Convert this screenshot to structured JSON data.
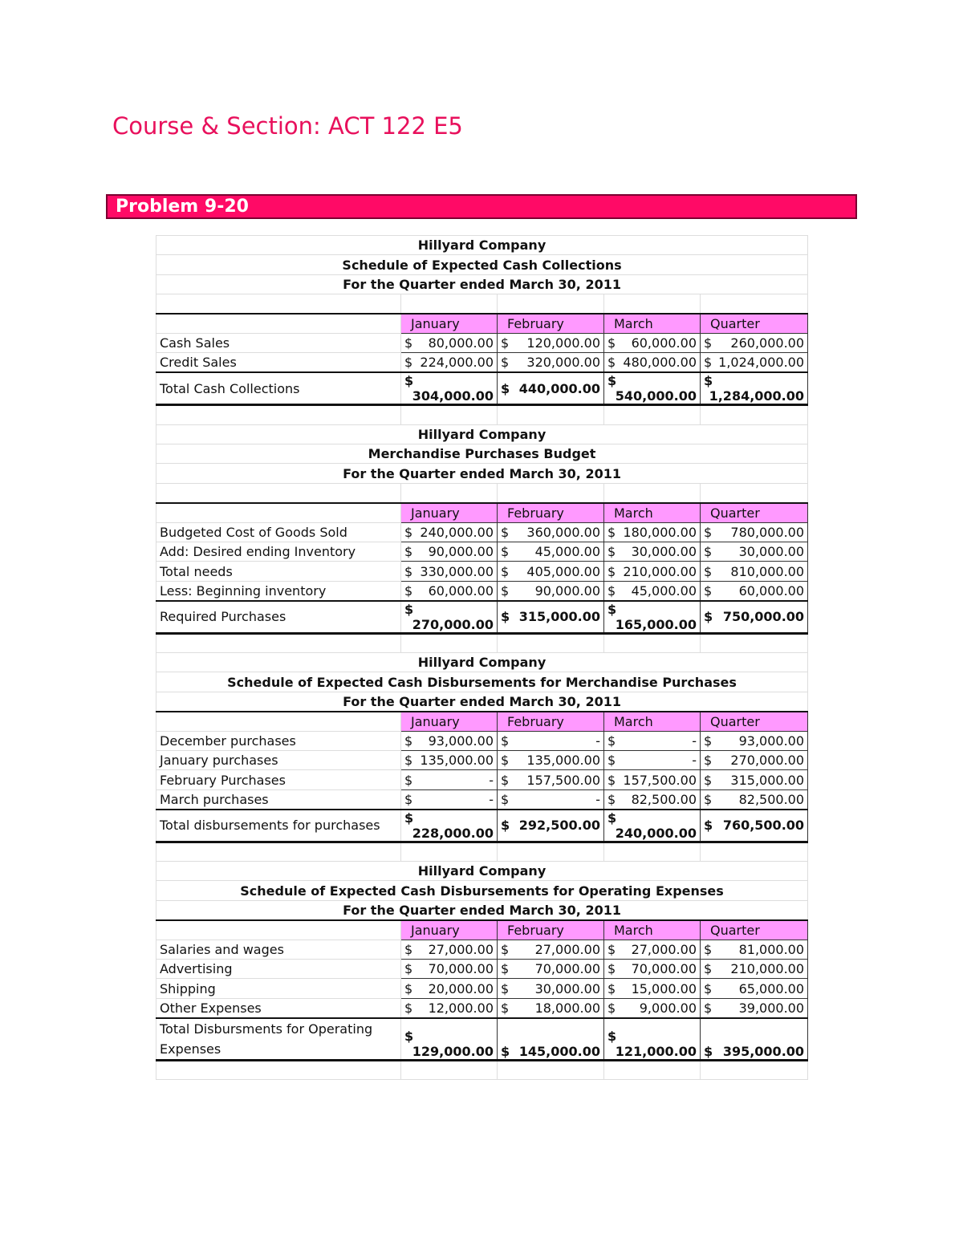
{
  "header": {
    "course": "Course & Section: ACT 122 E5",
    "problem": "Problem 9-20"
  },
  "tables": [
    {
      "company": "Hillyard Company",
      "title": "Schedule of Expected Cash Collections",
      "period": "For the Quarter ended March 30, 2011",
      "columns": [
        "January",
        "February",
        "March",
        "Quarter"
      ],
      "rows": [
        {
          "label": "Cash Sales",
          "cells": [
            [
              "$",
              "80,000.00"
            ],
            [
              "$",
              "120,000.00"
            ],
            [
              "$",
              "60,000.00"
            ],
            [
              "$",
              "260,000.00"
            ]
          ]
        },
        {
          "label": "Credit Sales",
          "cells": [
            [
              "$",
              "224,000.00"
            ],
            [
              "$",
              "320,000.00"
            ],
            [
              "$",
              "480,000.00"
            ],
            [
              "$",
              "1,024,000.00"
            ]
          ]
        },
        {
          "label": "Total Cash Collections",
          "cells": [
            [
              "$",
              "304,000.00"
            ],
            [
              "$",
              "440,000.00"
            ],
            [
              "$",
              "540,000.00"
            ],
            [
              "$",
              "1,284,000.00"
            ]
          ]
        }
      ]
    },
    {
      "company": "Hillyard Company",
      "title": "Merchandise Purchases Budget",
      "period": "For the Quarter ended March 30, 2011",
      "columns": [
        "January",
        "February",
        "March",
        "Quarter"
      ],
      "rows": [
        {
          "label": "Budgeted Cost of Goods Sold",
          "cells": [
            [
              "$",
              "240,000.00"
            ],
            [
              "$",
              "360,000.00"
            ],
            [
              "$",
              "180,000.00"
            ],
            [
              "$",
              "780,000.00"
            ]
          ]
        },
        {
          "label": "Add: Desired ending Inventory",
          "cells": [
            [
              "$",
              "90,000.00"
            ],
            [
              "$",
              "45,000.00"
            ],
            [
              "$",
              "30,000.00"
            ],
            [
              "$",
              "30,000.00"
            ]
          ]
        },
        {
          "label": "Total needs",
          "cells": [
            [
              "$",
              "330,000.00"
            ],
            [
              "$",
              "405,000.00"
            ],
            [
              "$",
              "210,000.00"
            ],
            [
              "$",
              "810,000.00"
            ]
          ]
        },
        {
          "label": "Less: Beginning inventory",
          "cells": [
            [
              "$",
              "60,000.00"
            ],
            [
              "$",
              "90,000.00"
            ],
            [
              "$",
              "45,000.00"
            ],
            [
              "$",
              "60,000.00"
            ]
          ]
        },
        {
          "label": "Required Purchases",
          "cells": [
            [
              "$",
              "270,000.00"
            ],
            [
              "$",
              "315,000.00"
            ],
            [
              "$",
              "165,000.00"
            ],
            [
              "$",
              "750,000.00"
            ]
          ]
        }
      ]
    },
    {
      "company": "Hillyard Company",
      "title": "Schedule of Expected Cash Disbursements for Merchandise Purchases",
      "period": "For the Quarter ended March 30, 2011",
      "columns": [
        "January",
        "February",
        "March",
        "Quarter"
      ],
      "rows": [
        {
          "label": "December purchases",
          "cells": [
            [
              "$",
              "93,000.00"
            ],
            [
              "$",
              "-"
            ],
            [
              "$",
              "-"
            ],
            [
              "$",
              "93,000.00"
            ]
          ]
        },
        {
          "label": "January purchases",
          "cells": [
            [
              "$",
              "135,000.00"
            ],
            [
              "$",
              "135,000.00"
            ],
            [
              "$",
              "-"
            ],
            [
              "$",
              "270,000.00"
            ]
          ]
        },
        {
          "label": "February Purchases",
          "cells": [
            [
              "$",
              "-"
            ],
            [
              "$",
              "157,500.00"
            ],
            [
              "$",
              "157,500.00"
            ],
            [
              "$",
              "315,000.00"
            ]
          ]
        },
        {
          "label": "March purchases",
          "cells": [
            [
              "$",
              "-"
            ],
            [
              "$",
              "-"
            ],
            [
              "$",
              "82,500.00"
            ],
            [
              "$",
              "82,500.00"
            ]
          ]
        },
        {
          "label": "Total disbursements for purchases",
          "cells": [
            [
              "$",
              "228,000.00"
            ],
            [
              "$",
              "292,500.00"
            ],
            [
              "$",
              "240,000.00"
            ],
            [
              "$",
              "760,500.00"
            ]
          ]
        }
      ]
    },
    {
      "company": "Hillyard Company",
      "title": "Schedule of Expected Cash Disbursements for Operating Expenses",
      "period": "For the Quarter ended March 30, 2011",
      "columns": [
        "January",
        "February",
        "March",
        "Quarter"
      ],
      "rows": [
        {
          "label": "Salaries and wages",
          "cells": [
            [
              "$",
              "27,000.00"
            ],
            [
              "$",
              "27,000.00"
            ],
            [
              "$",
              "27,000.00"
            ],
            [
              "$",
              "81,000.00"
            ]
          ]
        },
        {
          "label": "Advertising",
          "cells": [
            [
              "$",
              "70,000.00"
            ],
            [
              "$",
              "70,000.00"
            ],
            [
              "$",
              "70,000.00"
            ],
            [
              "$",
              "210,000.00"
            ]
          ]
        },
        {
          "label": "Shipping",
          "cells": [
            [
              "$",
              "20,000.00"
            ],
            [
              "$",
              "30,000.00"
            ],
            [
              "$",
              "15,000.00"
            ],
            [
              "$",
              "65,000.00"
            ]
          ]
        },
        {
          "label": "Other Expenses",
          "cells": [
            [
              "$",
              "12,000.00"
            ],
            [
              "$",
              "18,000.00"
            ],
            [
              "$",
              "9,000.00"
            ],
            [
              "$",
              "39,000.00"
            ]
          ]
        },
        {
          "label": "Total Disbursments for Operating Expenses",
          "cells": [
            [
              "$",
              "129,000.00"
            ],
            [
              "$",
              "145,000.00"
            ],
            [
              "$",
              "121,000.00"
            ],
            [
              "$",
              "395,000.00"
            ]
          ]
        }
      ]
    }
  ]
}
